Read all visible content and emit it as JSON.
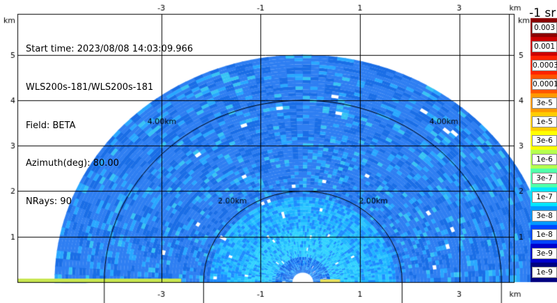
{
  "header": {
    "start_time": "Start time: 2023/08/08 14:03:09.966",
    "instrument": "WLS200s-181/WLS200s-181",
    "field": "Field: BETA",
    "azimuth": "Azimuth(deg): 80.00",
    "nrays": "NRays: 90"
  },
  "chart_data": {
    "type": "heatmap",
    "subtype": "polar RHI scan (semicircular)",
    "x_axis": {
      "unit": "km",
      "range": [
        -5.9,
        4.1
      ],
      "ticks": [
        -3,
        -1,
        1,
        3
      ]
    },
    "y_axis": {
      "unit": "km",
      "range": [
        0,
        5.9
      ],
      "ticks": [
        1,
        2,
        3,
        4,
        5
      ]
    },
    "range_rings": [
      {
        "radius_km": 2,
        "label": "2.00km"
      },
      {
        "radius_km": 4,
        "label": "4.00km"
      }
    ],
    "max_range_km": 5.0,
    "center_x_km": -0.15,
    "grid": true,
    "colorbar": {
      "title": "-1 sr",
      "ticks": [
        "0.003",
        "0.001",
        "0.0003",
        "0.0001",
        "3e-5",
        "1e-5",
        "3e-6",
        "1e-6",
        "3e-7",
        "1e-7",
        "3e-8",
        "1e-8",
        "3e-9",
        "1e-9"
      ],
      "colors": [
        "#8b0000",
        "#cc0000",
        "#ff2200",
        "#ff5500",
        "#ff9900",
        "#ffcc00",
        "#ffff00",
        "#b4ff50",
        "#50ffaa",
        "#00e6ff",
        "#0099ff",
        "#0044ff",
        "#0000cc",
        "#000080"
      ]
    },
    "dominant_value_range": [
      "1e-8",
      "1e-7"
    ]
  },
  "colors": {
    "background": "#ffffff",
    "grid": "#000000"
  }
}
